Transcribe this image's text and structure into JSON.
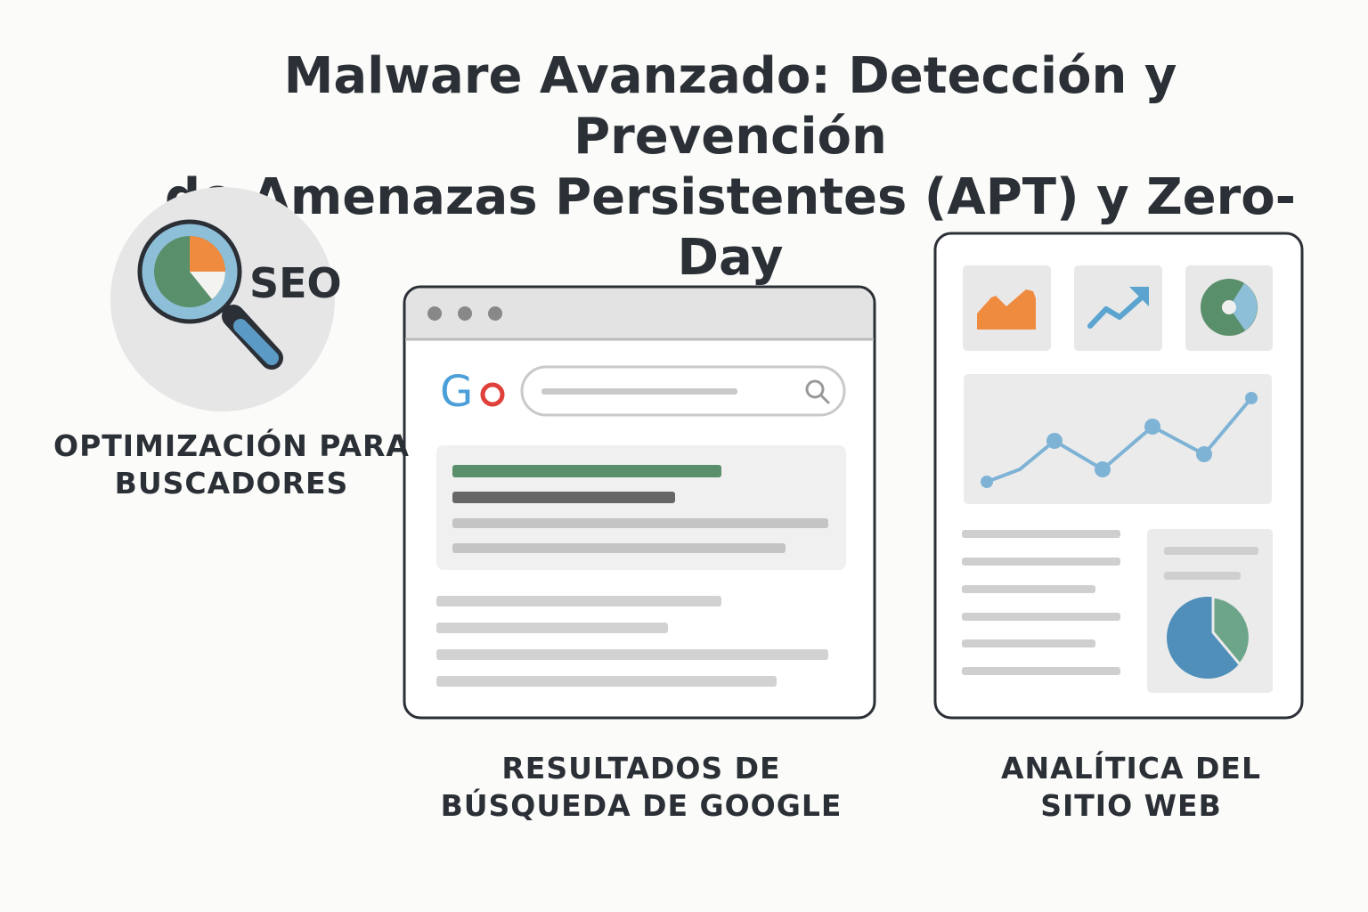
{
  "title": {
    "line1": "Malware Avanzado: Detección y Prevención",
    "line2": "de Amenazas Persistentes (APT) y Zero-Day"
  },
  "seo_badge": {
    "text": "SEO",
    "icon": "magnifier-pie-icon"
  },
  "labels": {
    "seo": [
      "OPTIMIZACIÓN PARA",
      "BUSCADORES"
    ],
    "search": [
      "RESULTADOS DE",
      "BÚSQUEDA DE GOOGLE"
    ],
    "analytics": [
      "ANALÍTICA DEL",
      "SITIO WEB"
    ]
  },
  "browser": {
    "logo_text": "Go",
    "search_icon": "search-icon"
  },
  "colors": {
    "text": "#2b2f36",
    "green": "#5a8f6b",
    "orange": "#ef8b3f",
    "blue": "#5aa4cf",
    "light_blue": "#8ebfd8",
    "google_blue": "#4a9fd8",
    "google_red": "#e0403a"
  }
}
